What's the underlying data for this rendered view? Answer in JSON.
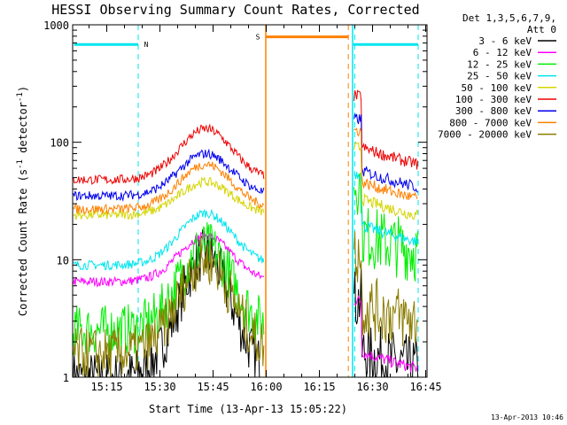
{
  "chart_data": {
    "type": "line",
    "title": "HESSI Observing Summary Count Rates, Corrected",
    "xlabel": "Start Time (13-Apr-13 15:05:22)",
    "ylabel_main": "Corrected Count Rate (s",
    "ylabel_sup1": "-1",
    "ylabel_mid": " detector",
    "ylabel_sup2": "-1",
    "ylabel_end": ")",
    "yscale": "log",
    "ylim": [
      1,
      1000
    ],
    "xlim_minutes": [
      0,
      100
    ],
    "x_ticks": [
      {
        "label": "15:15",
        "minute": 9.63
      },
      {
        "label": "15:30",
        "minute": 24.63
      },
      {
        "label": "15:45",
        "minute": 39.63
      },
      {
        "label": "16:00",
        "minute": 54.63
      },
      {
        "label": "16:15",
        "minute": 69.63
      },
      {
        "label": "16:30",
        "minute": 84.63
      },
      {
        "label": "16:45",
        "minute": 99.63
      }
    ],
    "y_ticks": [
      {
        "label": "1",
        "value": 1
      },
      {
        "label": "10",
        "value": 10
      },
      {
        "label": "100",
        "value": 100
      },
      {
        "label": "1000",
        "value": 1000
      }
    ],
    "legend_header_1": "Det 1,3,5,6,7,9,",
    "legend_header_2": "Att 0",
    "legend_position": "right",
    "timestamp": "13-Apr-2013 10:46",
    "flags": [
      {
        "label": "N",
        "color": "#00e5ee",
        "start": 0.4,
        "end": 18.5,
        "level": 680
      },
      {
        "label": "S",
        "color": "#ff8000",
        "start": 54.5,
        "end": 77.8,
        "level": 790
      },
      {
        "label": "",
        "color": "#00e5ee",
        "start": 79.2,
        "end": 97.5,
        "level": 680
      }
    ],
    "gap_minutes": [
      54.5,
      79.0
    ],
    "dashed_lines": [
      {
        "minute": 18.5,
        "color": "#00e5ee"
      },
      {
        "minute": 77.8,
        "color": "#ff8000"
      },
      {
        "minute": 79.6,
        "color": "#00e5ee"
      },
      {
        "minute": 97.5,
        "color": "#00e5ee"
      }
    ],
    "solid_lines": [
      {
        "minute": 54.5,
        "color": "#ff8000"
      },
      {
        "minute": 79.0,
        "color": "#00e5ee"
      }
    ],
    "series": [
      {
        "name": "3 - 6 keV",
        "color": "#000000",
        "pre": 1.0,
        "peak": 11,
        "post": 1.0
      },
      {
        "name": "6 - 12 keV",
        "color": "#ff00ff",
        "pre": 6.5,
        "peak": 16,
        "post": 1.0
      },
      {
        "name": "12 - 25 keV",
        "color": "#00ee00",
        "pre": 2.5,
        "peak": 13,
        "post": 10
      },
      {
        "name": "25 - 50 keV",
        "color": "#00e5ee",
        "pre": 9.0,
        "peak": 25,
        "post": 12
      },
      {
        "name": "50 - 100 keV",
        "color": "#d4d400",
        "pre": 24,
        "peak": 46,
        "post": 20
      },
      {
        "name": "100 - 300 keV",
        "color": "#ee0000",
        "pre": 48,
        "peak": 130,
        "post": 55
      },
      {
        "name": "300 - 800 keV",
        "color": "#0000ee",
        "pre": 35,
        "peak": 80,
        "post": 35
      },
      {
        "name": "800 - 7000 keV",
        "color": "#ff8000",
        "pre": 27,
        "peak": 65,
        "post": 28
      },
      {
        "name": "7000 - 20000 keV",
        "color": "#8b7d00",
        "pre": 1.6,
        "peak": 10,
        "post": 2.5
      }
    ]
  }
}
